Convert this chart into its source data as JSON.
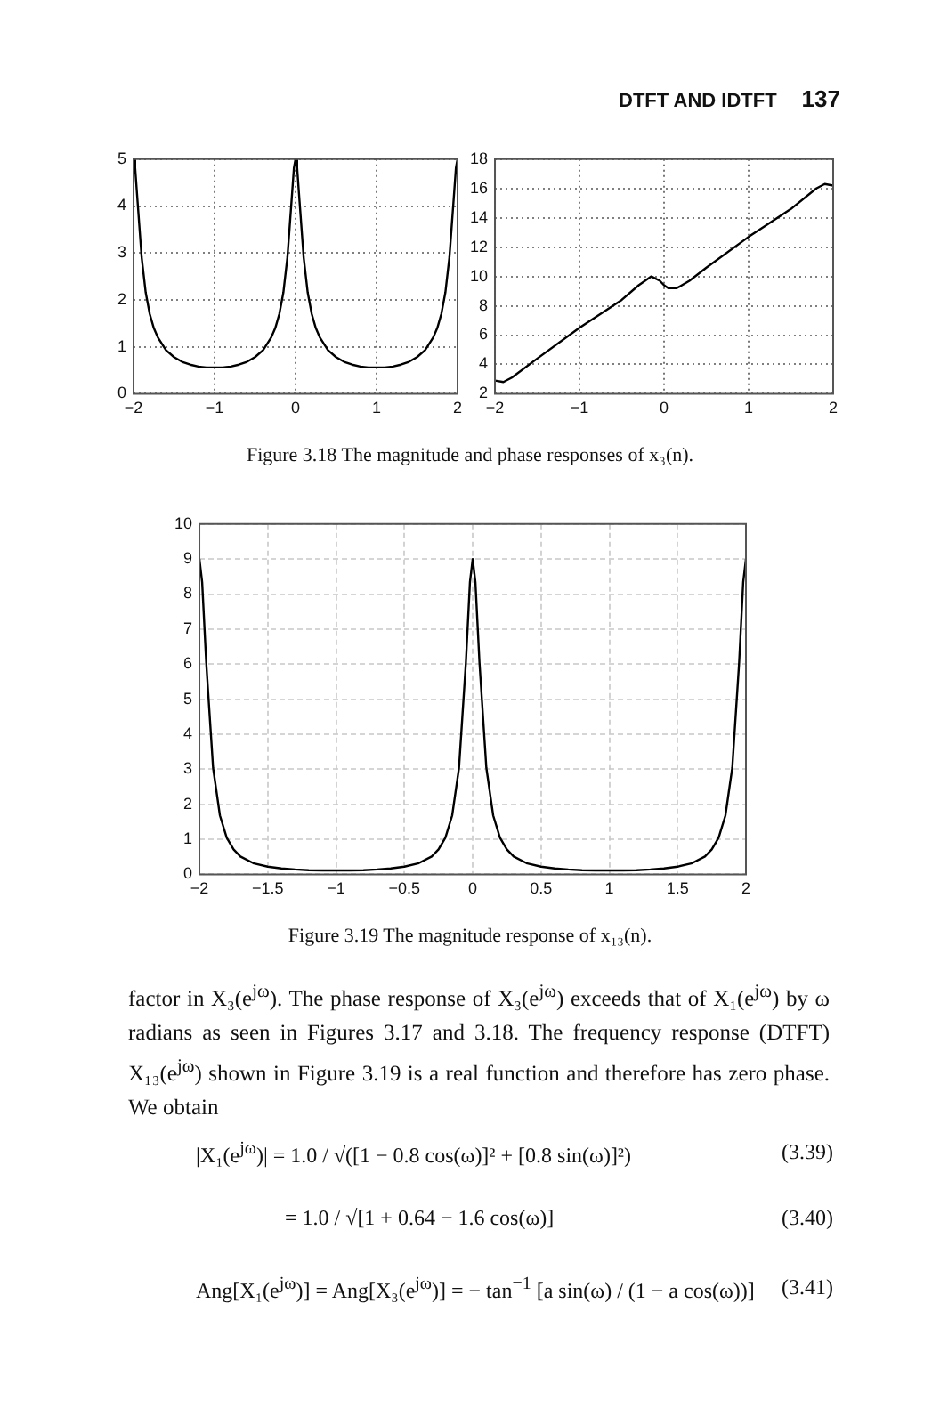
{
  "chart_data": [
    {
      "type": "line",
      "annotations": [
        "DTFT AND IDTFT",
        "137"
      ],
      "x": [
        -2,
        -1.98,
        -1.95,
        -1.9,
        -1.85,
        -1.8,
        -1.75,
        -1.7,
        -1.6,
        -1.5,
        -1.4,
        -1.3,
        -1.2,
        -1.1,
        -1,
        -0.9,
        -0.8,
        -0.7,
        -0.6,
        -0.5,
        -0.4,
        -0.3,
        -0.25,
        -0.2,
        -0.15,
        -0.1,
        -0.05,
        -0.02,
        0,
        0.02,
        0.05,
        0.1,
        0.15,
        0.2,
        0.25,
        0.3,
        0.4,
        0.5,
        0.6,
        0.7,
        0.8,
        0.9,
        1,
        1.1,
        1.2,
        1.3,
        1.4,
        1.5,
        1.6,
        1.7,
        1.75,
        1.8,
        1.85,
        1.9,
        1.95,
        1.98,
        2
      ],
      "values": [
        5,
        4.81,
        4.09,
        2.91,
        2.16,
        1.7,
        1.4,
        1.2,
        0.93,
        0.78,
        0.68,
        0.62,
        0.58,
        0.56,
        0.56,
        0.56,
        0.58,
        0.62,
        0.68,
        0.78,
        0.93,
        1.2,
        1.4,
        1.7,
        2.16,
        2.91,
        4.09,
        4.81,
        5,
        4.81,
        4.09,
        2.91,
        2.16,
        1.7,
        1.4,
        1.2,
        0.93,
        0.78,
        0.68,
        0.62,
        0.58,
        0.56,
        0.56,
        0.56,
        0.58,
        0.62,
        0.68,
        0.78,
        0.93,
        1.2,
        1.4,
        1.7,
        2.16,
        2.91,
        4.09,
        4.81,
        5
      ],
      "color": "#000000",
      "xlim": [
        -2,
        2
      ],
      "ylim": [
        0,
        5
      ],
      "xticks": [
        -2,
        -1,
        0,
        1,
        2
      ],
      "yticks": [
        0,
        1,
        2,
        3,
        4,
        5
      ],
      "grid": true,
      "marker": "none",
      "line_style": "solid",
      "legend": false
    },
    {
      "type": "line",
      "annotations": [
        "Figure 3.18   The magnitude and phase responses of x₃(n)."
      ],
      "x": [
        -2,
        -1.9,
        -1.8,
        -1.5,
        -1,
        -0.5,
        -0.3,
        -0.15,
        -0.05,
        0,
        0.05,
        0.15,
        0.3,
        0.5,
        1,
        1.5,
        1.8,
        1.9,
        2
      ],
      "values": [
        2.9,
        2.8,
        3.1,
        4.4,
        6.5,
        8.4,
        9.4,
        10,
        9.7,
        9.4,
        9.2,
        9.2,
        9.7,
        10.6,
        12.7,
        14.6,
        16,
        16.3,
        16.2
      ],
      "color": "#000000",
      "xlim": [
        -2,
        2
      ],
      "ylim": [
        2,
        18
      ],
      "xticks": [
        -2,
        -1,
        0,
        1,
        2
      ],
      "yticks": [
        2,
        4,
        6,
        8,
        10,
        12,
        14,
        16,
        18
      ],
      "grid": true,
      "marker": "none",
      "line_style": "solid",
      "legend": false
    },
    {
      "type": "line",
      "annotations": [
        "Figure 3.19   The magnitude response of x₁₃(n).",
        "factor in X₃(e$^{jω}$). The phase response of X₃(e$^{jω}$) exceeds that of X₁(e$^{jω}$) by ω radians as seen in Figures 3.17 and 3.18. The frequency response (DTFT) X₁₃(e$^{jω}$) shown in Figure 3.19 is a real function and therefore has zero phase. We obtain",
        "|X₁(e$^{jω}$)| = 1.0 / √([1 − 0.8 cos(ω)]² + [0.8 sin(ω)]²)",
        "(3.39)",
        "= 1.0 / √[1 + 0.64 − 1.6 cos(ω)]",
        "(3.40)",
        "Ang[X₁(e$^{jω}$)] = Ang[X₃(e$^{jω}$)] = − tan$^{−1}$ [a sin(ω) / (1 − a cos(ω))]",
        "(3.41)"
      ],
      "x": [
        -2,
        -1.98,
        -1.95,
        -1.9,
        -1.85,
        -1.8,
        -1.75,
        -1.7,
        -1.6,
        -1.5,
        -1.4,
        -1.3,
        -1.2,
        -1.1,
        -1,
        -0.9,
        -0.8,
        -0.7,
        -0.6,
        -0.5,
        -0.4,
        -0.3,
        -0.25,
        -0.2,
        -0.15,
        -0.1,
        -0.05,
        -0.02,
        0,
        0.02,
        0.05,
        0.1,
        0.15,
        0.2,
        0.25,
        0.3,
        0.4,
        0.5,
        0.6,
        0.7,
        0.8,
        0.9,
        1,
        1.1,
        1.2,
        1.3,
        1.4,
        1.5,
        1.6,
        1.7,
        1.75,
        1.8,
        1.85,
        1.9,
        1.95,
        1.98,
        2
      ],
      "values": [
        9,
        8.34,
        6.03,
        3.04,
        1.68,
        1.04,
        0.71,
        0.51,
        0.31,
        0.22,
        0.17,
        0.14,
        0.12,
        0.11,
        0.11,
        0.11,
        0.12,
        0.14,
        0.17,
        0.22,
        0.31,
        0.51,
        0.71,
        1.04,
        1.68,
        3.04,
        6.03,
        8.34,
        9,
        8.34,
        6.03,
        3.04,
        1.68,
        1.04,
        0.71,
        0.51,
        0.31,
        0.22,
        0.17,
        0.14,
        0.12,
        0.11,
        0.11,
        0.11,
        0.12,
        0.14,
        0.17,
        0.22,
        0.31,
        0.51,
        0.71,
        1.04,
        1.68,
        3.04,
        6.03,
        8.34,
        9
      ],
      "color": "#000000",
      "xlim": [
        -2,
        2
      ],
      "ylim": [
        0,
        10
      ],
      "xticks": [
        -2,
        -1.5,
        -1,
        -0.5,
        0,
        0.5,
        1,
        1.5,
        2
      ],
      "yticks": [
        0,
        1,
        2,
        3,
        4,
        5,
        6,
        7,
        8,
        9,
        10
      ],
      "grid": true,
      "marker": "none",
      "line_style": "solid",
      "legend": false
    }
  ]
}
